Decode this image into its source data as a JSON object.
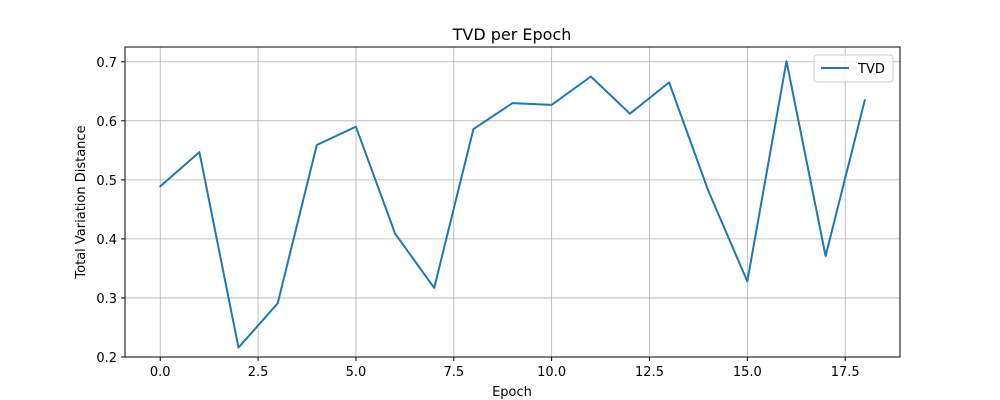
{
  "chart_data": {
    "type": "line",
    "title": "TVD per Epoch",
    "xlabel": "Epoch",
    "ylabel": "Total Variation Distance",
    "xlim": [
      -0.9,
      18.9
    ],
    "ylim": [
      0.2,
      0.725
    ],
    "x_ticks": [
      0.0,
      2.5,
      5.0,
      7.5,
      10.0,
      12.5,
      15.0,
      17.5
    ],
    "x_tick_labels": [
      "0.0",
      "2.5",
      "5.0",
      "7.5",
      "10.0",
      "12.5",
      "15.0",
      "17.5"
    ],
    "y_ticks": [
      0.2,
      0.3,
      0.4,
      0.5,
      0.6,
      0.7
    ],
    "y_tick_labels": [
      "0.2",
      "0.3",
      "0.4",
      "0.5",
      "0.6",
      "0.7"
    ],
    "grid": true,
    "legend": "top-right",
    "series": [
      {
        "name": "TVD",
        "color": "#1f77b4",
        "x": [
          0,
          1,
          2,
          3,
          4,
          5,
          6,
          7,
          8,
          9,
          10,
          11,
          12,
          13,
          14,
          15,
          16,
          17,
          18
        ],
        "y": [
          0.489,
          0.547,
          0.216,
          0.291,
          0.559,
          0.59,
          0.409,
          0.317,
          0.586,
          0.63,
          0.627,
          0.675,
          0.612,
          0.665,
          0.482,
          0.328,
          0.701,
          0.371,
          0.635
        ]
      }
    ]
  }
}
